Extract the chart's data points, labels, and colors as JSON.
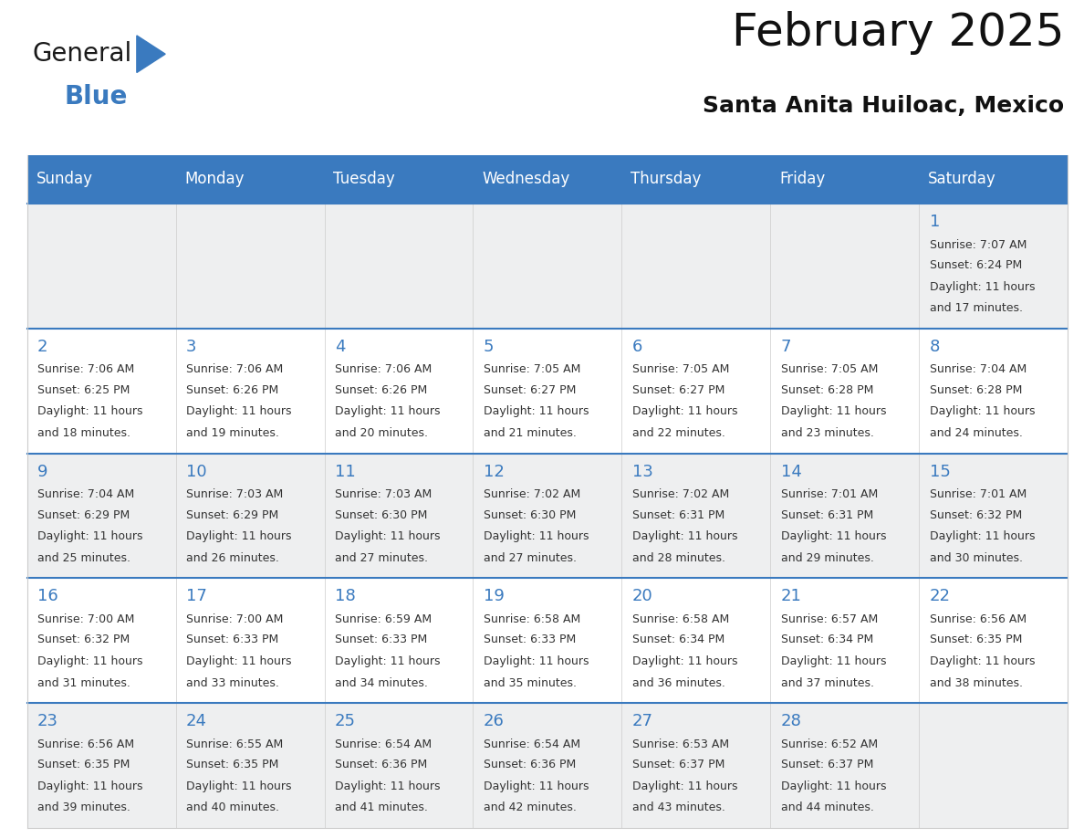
{
  "title": "February 2025",
  "subtitle": "Santa Anita Huiloac, Mexico",
  "header_color": "#3a7abf",
  "header_text_color": "#ffffff",
  "cell_bg_even": "#eeeff0",
  "cell_bg_odd": "#ffffff",
  "day_number_color": "#3a7abf",
  "text_color": "#333333",
  "line_color": "#3a7abf",
  "days_of_week": [
    "Sunday",
    "Monday",
    "Tuesday",
    "Wednesday",
    "Thursday",
    "Friday",
    "Saturday"
  ],
  "weeks": [
    [
      {
        "day": null,
        "data": null
      },
      {
        "day": null,
        "data": null
      },
      {
        "day": null,
        "data": null
      },
      {
        "day": null,
        "data": null
      },
      {
        "day": null,
        "data": null
      },
      {
        "day": null,
        "data": null
      },
      {
        "day": 1,
        "data": {
          "sunrise": "7:07 AM",
          "sunset": "6:24 PM",
          "daylight": "11 hours",
          "daylight2": "and 17 minutes."
        }
      }
    ],
    [
      {
        "day": 2,
        "data": {
          "sunrise": "7:06 AM",
          "sunset": "6:25 PM",
          "daylight": "11 hours",
          "daylight2": "and 18 minutes."
        }
      },
      {
        "day": 3,
        "data": {
          "sunrise": "7:06 AM",
          "sunset": "6:26 PM",
          "daylight": "11 hours",
          "daylight2": "and 19 minutes."
        }
      },
      {
        "day": 4,
        "data": {
          "sunrise": "7:06 AM",
          "sunset": "6:26 PM",
          "daylight": "11 hours",
          "daylight2": "and 20 minutes."
        }
      },
      {
        "day": 5,
        "data": {
          "sunrise": "7:05 AM",
          "sunset": "6:27 PM",
          "daylight": "11 hours",
          "daylight2": "and 21 minutes."
        }
      },
      {
        "day": 6,
        "data": {
          "sunrise": "7:05 AM",
          "sunset": "6:27 PM",
          "daylight": "11 hours",
          "daylight2": "and 22 minutes."
        }
      },
      {
        "day": 7,
        "data": {
          "sunrise": "7:05 AM",
          "sunset": "6:28 PM",
          "daylight": "11 hours",
          "daylight2": "and 23 minutes."
        }
      },
      {
        "day": 8,
        "data": {
          "sunrise": "7:04 AM",
          "sunset": "6:28 PM",
          "daylight": "11 hours",
          "daylight2": "and 24 minutes."
        }
      }
    ],
    [
      {
        "day": 9,
        "data": {
          "sunrise": "7:04 AM",
          "sunset": "6:29 PM",
          "daylight": "11 hours",
          "daylight2": "and 25 minutes."
        }
      },
      {
        "day": 10,
        "data": {
          "sunrise": "7:03 AM",
          "sunset": "6:29 PM",
          "daylight": "11 hours",
          "daylight2": "and 26 minutes."
        }
      },
      {
        "day": 11,
        "data": {
          "sunrise": "7:03 AM",
          "sunset": "6:30 PM",
          "daylight": "11 hours",
          "daylight2": "and 27 minutes."
        }
      },
      {
        "day": 12,
        "data": {
          "sunrise": "7:02 AM",
          "sunset": "6:30 PM",
          "daylight": "11 hours",
          "daylight2": "and 27 minutes."
        }
      },
      {
        "day": 13,
        "data": {
          "sunrise": "7:02 AM",
          "sunset": "6:31 PM",
          "daylight": "11 hours",
          "daylight2": "and 28 minutes."
        }
      },
      {
        "day": 14,
        "data": {
          "sunrise": "7:01 AM",
          "sunset": "6:31 PM",
          "daylight": "11 hours",
          "daylight2": "and 29 minutes."
        }
      },
      {
        "day": 15,
        "data": {
          "sunrise": "7:01 AM",
          "sunset": "6:32 PM",
          "daylight": "11 hours",
          "daylight2": "and 30 minutes."
        }
      }
    ],
    [
      {
        "day": 16,
        "data": {
          "sunrise": "7:00 AM",
          "sunset": "6:32 PM",
          "daylight": "11 hours",
          "daylight2": "and 31 minutes."
        }
      },
      {
        "day": 17,
        "data": {
          "sunrise": "7:00 AM",
          "sunset": "6:33 PM",
          "daylight": "11 hours",
          "daylight2": "and 33 minutes."
        }
      },
      {
        "day": 18,
        "data": {
          "sunrise": "6:59 AM",
          "sunset": "6:33 PM",
          "daylight": "11 hours",
          "daylight2": "and 34 minutes."
        }
      },
      {
        "day": 19,
        "data": {
          "sunrise": "6:58 AM",
          "sunset": "6:33 PM",
          "daylight": "11 hours",
          "daylight2": "and 35 minutes."
        }
      },
      {
        "day": 20,
        "data": {
          "sunrise": "6:58 AM",
          "sunset": "6:34 PM",
          "daylight": "11 hours",
          "daylight2": "and 36 minutes."
        }
      },
      {
        "day": 21,
        "data": {
          "sunrise": "6:57 AM",
          "sunset": "6:34 PM",
          "daylight": "11 hours",
          "daylight2": "and 37 minutes."
        }
      },
      {
        "day": 22,
        "data": {
          "sunrise": "6:56 AM",
          "sunset": "6:35 PM",
          "daylight": "11 hours",
          "daylight2": "and 38 minutes."
        }
      }
    ],
    [
      {
        "day": 23,
        "data": {
          "sunrise": "6:56 AM",
          "sunset": "6:35 PM",
          "daylight": "11 hours",
          "daylight2": "and 39 minutes."
        }
      },
      {
        "day": 24,
        "data": {
          "sunrise": "6:55 AM",
          "sunset": "6:35 PM",
          "daylight": "11 hours",
          "daylight2": "and 40 minutes."
        }
      },
      {
        "day": 25,
        "data": {
          "sunrise": "6:54 AM",
          "sunset": "6:36 PM",
          "daylight": "11 hours",
          "daylight2": "and 41 minutes."
        }
      },
      {
        "day": 26,
        "data": {
          "sunrise": "6:54 AM",
          "sunset": "6:36 PM",
          "daylight": "11 hours",
          "daylight2": "and 42 minutes."
        }
      },
      {
        "day": 27,
        "data": {
          "sunrise": "6:53 AM",
          "sunset": "6:37 PM",
          "daylight": "11 hours",
          "daylight2": "and 43 minutes."
        }
      },
      {
        "day": 28,
        "data": {
          "sunrise": "6:52 AM",
          "sunset": "6:37 PM",
          "daylight": "11 hours",
          "daylight2": "and 44 minutes."
        }
      },
      {
        "day": null,
        "data": null
      }
    ]
  ],
  "logo_general_color": "#1a1a1a",
  "logo_blue_color": "#3a7abf",
  "title_fontsize": 36,
  "subtitle_fontsize": 18,
  "header_fontsize": 12,
  "day_num_fontsize": 13,
  "cell_text_fontsize": 9
}
